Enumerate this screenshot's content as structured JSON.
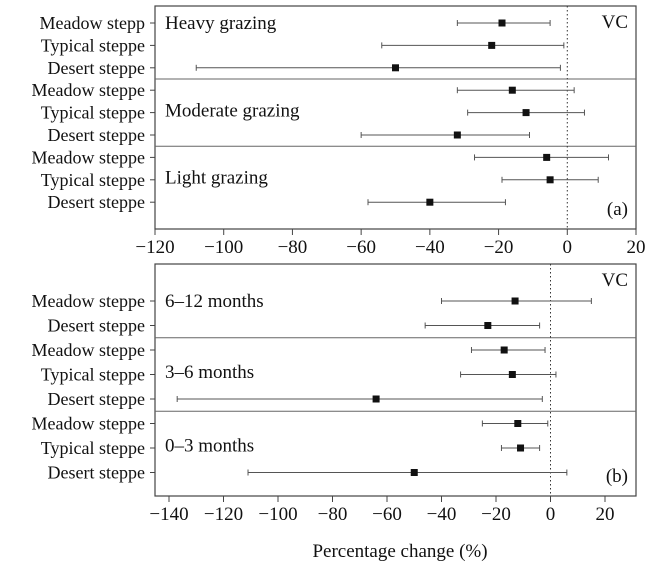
{
  "chart_data": [
    {
      "type": "forest",
      "panel_label": "(a)",
      "tag": "VC",
      "xlim": [
        -120,
        20
      ],
      "xticks": [
        -120,
        -100,
        -80,
        -60,
        -40,
        -20,
        0,
        20
      ],
      "reference_x": 0,
      "groups": [
        {
          "label": "Heavy grazing",
          "rows": [
            {
              "label": "Meadow stepp",
              "mean": -19,
              "low": -32,
              "high": -5
            },
            {
              "label": "Typical steppe",
              "mean": -22,
              "low": -54,
              "high": -1
            },
            {
              "label": "Desert steppe",
              "mean": -50,
              "low": -108,
              "high": -2
            }
          ]
        },
        {
          "label": "Moderate  grazing",
          "rows": [
            {
              "label": "Meadow steppe",
              "mean": -16,
              "low": -32,
              "high": 2
            },
            {
              "label": "Typical steppe",
              "mean": -12,
              "low": -29,
              "high": 5
            },
            {
              "label": "Desert steppe",
              "mean": -32,
              "low": -60,
              "high": -11
            }
          ]
        },
        {
          "label": "Light grazing",
          "rows": [
            {
              "label": "Meadow steppe",
              "mean": -6,
              "low": -27,
              "high": 12
            },
            {
              "label": "Typical steppe",
              "mean": -5,
              "low": -19,
              "high": 9
            },
            {
              "label": "Desert steppe",
              "mean": -40,
              "low": -58,
              "high": -18
            }
          ]
        }
      ]
    },
    {
      "type": "forest",
      "panel_label": "(b)",
      "tag": "VC",
      "xlim": [
        -150,
        30
      ],
      "xticks": [
        -140,
        -120,
        -100,
        -80,
        -60,
        -40,
        -20,
        0,
        20
      ],
      "reference_x": 0,
      "xlabel": "Percentage change (%)",
      "groups": [
        {
          "label": "6–12 months",
          "rows": [
            {
              "label": "Meadow steppe",
              "mean": -13,
              "low": -40,
              "high": 15
            },
            {
              "label": "Desert steppe",
              "mean": -23,
              "low": -46,
              "high": -4
            }
          ]
        },
        {
          "label": "3–6 months",
          "rows": [
            {
              "label": "Meadow steppe",
              "mean": -17,
              "low": -29,
              "high": -2
            },
            {
              "label": "Typical steppe",
              "mean": -14,
              "low": -33,
              "high": 2
            },
            {
              "label": "Desert steppe",
              "mean": -64,
              "low": -137,
              "high": -3
            }
          ]
        },
        {
          "label": "0–3 months",
          "rows": [
            {
              "label": "Meadow steppe",
              "mean": -12,
              "low": -25,
              "high": -1
            },
            {
              "label": "Typical steppe",
              "mean": -11,
              "low": -18,
              "high": -4
            },
            {
              "label": "Desert steppe",
              "mean": -50,
              "low": -111,
              "high": 6
            }
          ]
        }
      ]
    }
  ]
}
